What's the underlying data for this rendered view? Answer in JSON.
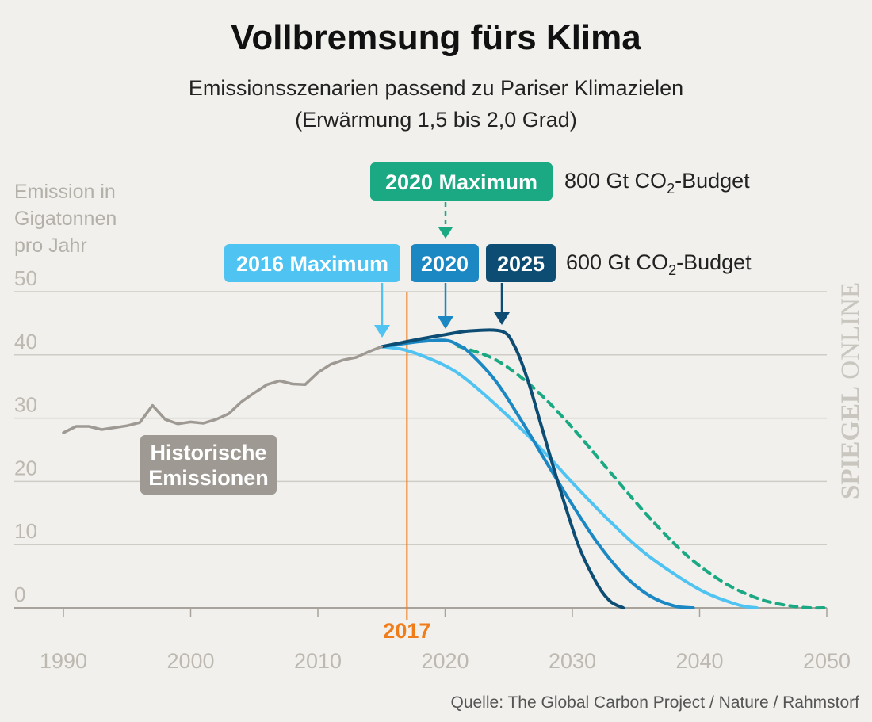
{
  "title": "Vollbremsung fürs Klima",
  "subtitle_line1": "Emissionsszenarien passend zu Pariser Klimazielen",
  "subtitle_line2": "(Erwärmung 1,5 bis 2,0 Grad)",
  "source": "Quelle: The Global Carbon Project / Nature / Rahmstorf",
  "watermark": {
    "bold": "SPIEGEL",
    "light": " ONLINE"
  },
  "colors": {
    "background": "#f1f0ec",
    "historical": "#9e9a93",
    "grid": "#cfccc5",
    "green": "#1aa983",
    "light_blue": "#4fc3f1",
    "mid_blue": "#1b87c3",
    "dark_blue": "#0d4c73",
    "orange": "#f07d19"
  },
  "badges": {
    "max2020_green": "2020 Maximum",
    "max2016": "2016 Maximum",
    "year2020": "2020",
    "year2025": "2025",
    "historical_line1": "Historische",
    "historical_line2": "Emissionen"
  },
  "budgets": {
    "b800": {
      "prefix": "800 Gt CO",
      "sub": "2",
      "suffix": "-Budget"
    },
    "b600": {
      "prefix": "600 Gt CO",
      "sub": "2",
      "suffix": "-Budget"
    }
  },
  "marker": {
    "year": 2017,
    "label": "2017"
  },
  "chart_data": {
    "type": "line",
    "title": "Vollbremsung fürs Klima",
    "ylabel_lines": [
      "Emission in",
      "Gigatonnen",
      "pro Jahr"
    ],
    "xlabel": "",
    "xlim": [
      1990,
      2050
    ],
    "ylim": [
      0,
      50
    ],
    "x_ticks": [
      1990,
      2000,
      2010,
      2020,
      2030,
      2040,
      2050
    ],
    "y_ticks": [
      0,
      10,
      20,
      30,
      40,
      50
    ],
    "grid": "horizontal",
    "series": [
      {
        "name": "Historische Emissionen",
        "color_key": "historical",
        "style": "solid",
        "x": [
          1990,
          1991,
          1992,
          1993,
          1994,
          1995,
          1996,
          1997,
          1998,
          1999,
          2000,
          2001,
          2002,
          2003,
          2004,
          2005,
          2006,
          2007,
          2008,
          2009,
          2010,
          2011,
          2012,
          2013,
          2014,
          2015
        ],
        "y": [
          27.7,
          28.7,
          28.7,
          28.2,
          28.5,
          28.8,
          29.3,
          32.0,
          29.8,
          29.1,
          29.4,
          29.2,
          29.8,
          30.7,
          32.6,
          34.0,
          35.3,
          35.9,
          35.4,
          35.3,
          37.2,
          38.5,
          39.2,
          39.6,
          40.5,
          41.3
        ]
      },
      {
        "name": "2016 Maximum",
        "color_key": "light_blue",
        "style": "solid",
        "x": [
          2015,
          2017,
          2020,
          2022,
          2025,
          2028,
          2030,
          2033,
          2036,
          2040,
          2043,
          2044.5
        ],
        "y": [
          41.3,
          40.7,
          38.3,
          35.6,
          30.2,
          24.2,
          19.8,
          13.6,
          8.2,
          2.9,
          0.5,
          0
        ]
      },
      {
        "name": "2020",
        "color_key": "mid_blue",
        "style": "solid",
        "x": [
          2015,
          2018,
          2020,
          2021,
          2022,
          2024,
          2026,
          2028,
          2030,
          2032,
          2034,
          2036,
          2038,
          2039.5
        ],
        "y": [
          41.3,
          42.1,
          42.3,
          41.6,
          40.2,
          35.8,
          29.6,
          22.9,
          16.3,
          10.2,
          5.3,
          2.0,
          0.3,
          0
        ]
      },
      {
        "name": "2025",
        "color_key": "dark_blue",
        "style": "solid",
        "x": [
          2015,
          2018,
          2020,
          2022,
          2024.5,
          2025.5,
          2026.5,
          2027.5,
          2029,
          2030.5,
          2032,
          2033,
          2034
        ],
        "y": [
          41.3,
          42.5,
          43.2,
          43.8,
          43.7,
          41.2,
          36.0,
          29.2,
          19.0,
          9.8,
          3.6,
          1.0,
          0
        ]
      },
      {
        "name": "2020 Maximum",
        "color_key": "green",
        "style": "dashed",
        "x": [
          2021,
          2024,
          2027,
          2030,
          2033,
          2036,
          2039,
          2042,
          2045,
          2048,
          2050
        ],
        "y": [
          41.4,
          39.2,
          34.7,
          28.5,
          21.4,
          14.4,
          8.3,
          3.9,
          1.2,
          0.1,
          0
        ]
      }
    ]
  }
}
